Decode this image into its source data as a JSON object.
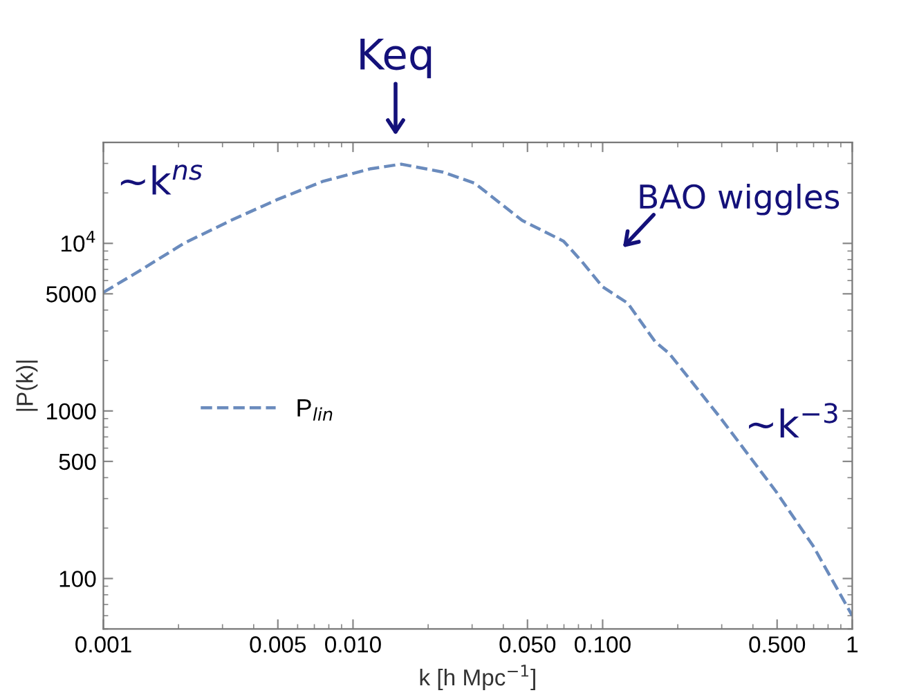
{
  "chart_data": {
    "type": "line",
    "xlabel": "k [h Mpc$^{−1}$]",
    "ylabel": "|P(k)|",
    "x": [
      0.001,
      0.00138,
      0.0021,
      0.00324,
      0.00495,
      0.00755,
      0.01167,
      0.0156,
      0.023,
      0.0308,
      0.0476,
      0.0698,
      0.0826,
      0.1,
      0.126,
      0.1626,
      0.185,
      0.296,
      0.494,
      0.698,
      1
    ],
    "series": [
      {
        "name": "P$_{lin}$",
        "color": "#6a8bbd",
        "values": [
          5100,
          6780,
          10000,
          13700,
          18200,
          23400,
          27800,
          29700,
          26600,
          22800,
          13700,
          10300,
          7790,
          5500,
          4400,
          2580,
          2200,
          912,
          332,
          156,
          60
        ]
      }
    ],
    "xlim": [
      0.001,
      1
    ],
    "ylim": [
      50,
      40000
    ],
    "log": "xy",
    "xticks": [
      {
        "value": 0.001,
        "label": "0.001"
      },
      {
        "value": 0.005,
        "label": "0.005"
      },
      {
        "value": 0.01,
        "label": "0.010"
      },
      {
        "value": 0.05,
        "label": "0.050"
      },
      {
        "value": 0.1,
        "label": "0.100"
      },
      {
        "value": 0.5,
        "label": "0.500"
      },
      1
    ],
    "yticks": [
      100,
      500,
      1000,
      5000,
      {
        "value": 10000,
        "label": "10$^{4}$"
      }
    ],
    "line_style": "dashed",
    "marker": "none",
    "grid": false,
    "legend": "center left",
    "annotations": [
      "Keq",
      "BAO wiggles",
      "~k$^{ns}$",
      "~k$^{−3}$"
    ]
  }
}
